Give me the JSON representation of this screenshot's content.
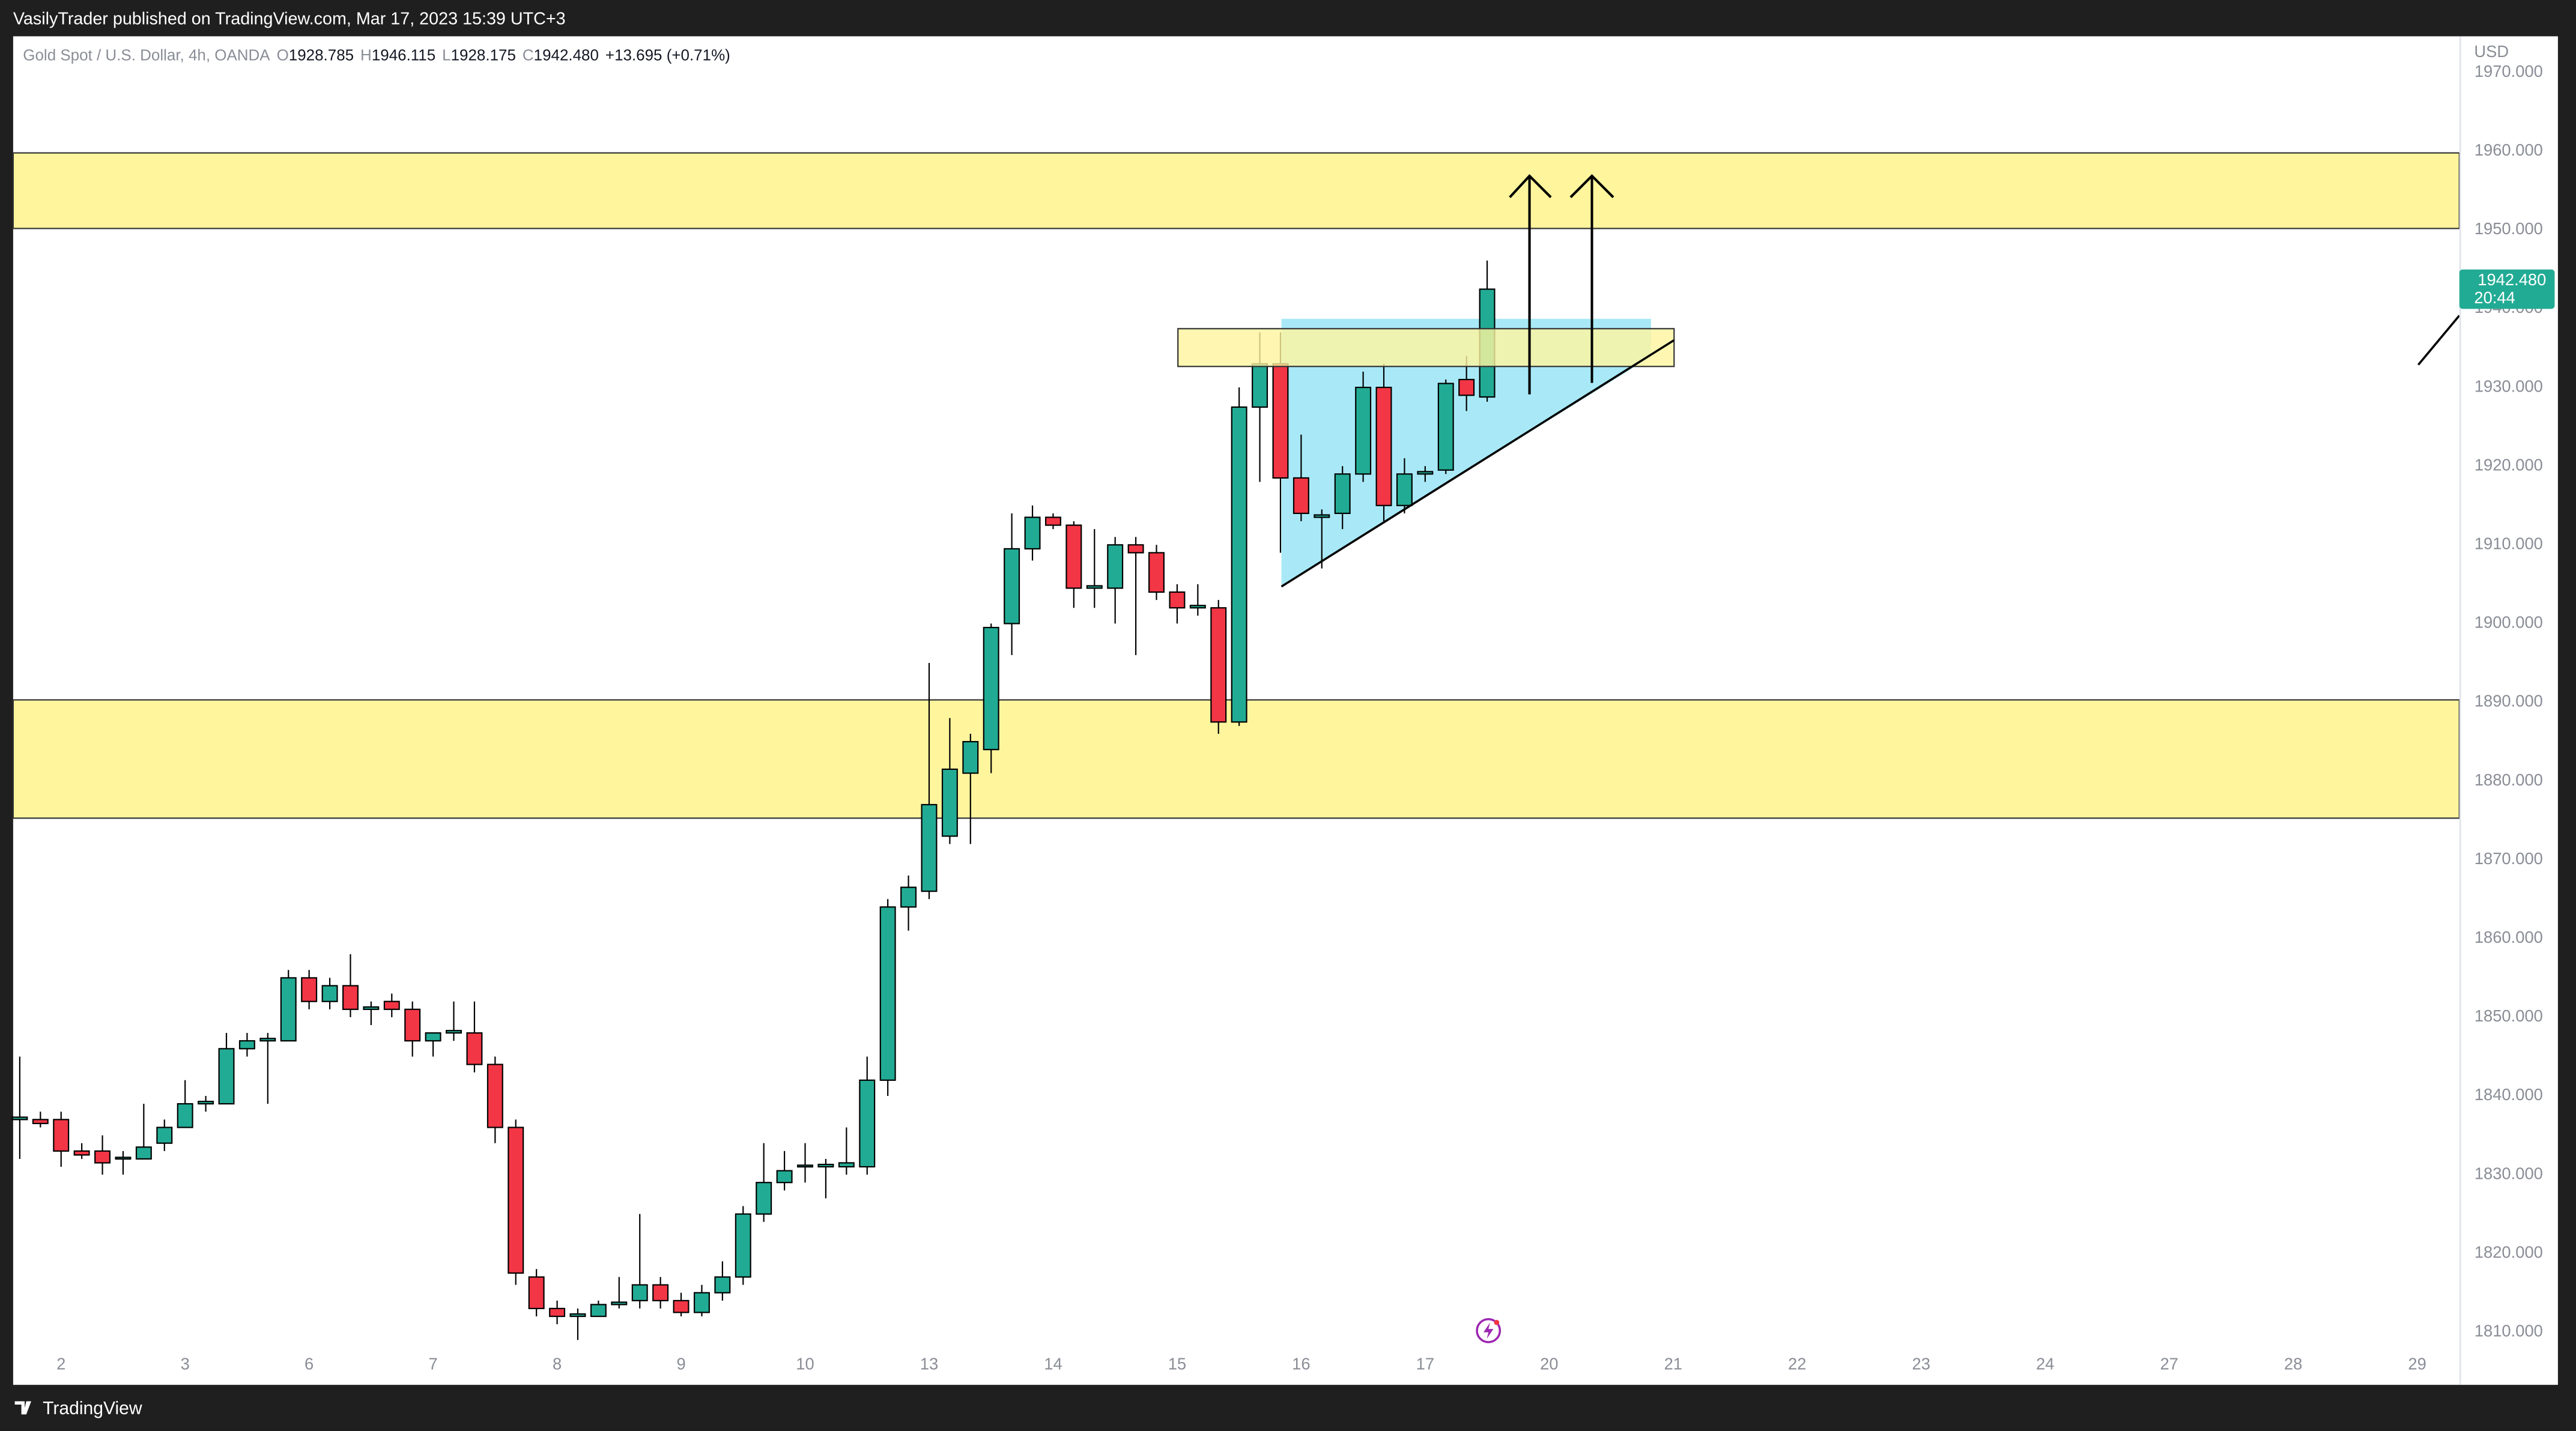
{
  "chart_data": {
    "type": "candlestick",
    "publisher_line": "VasilyTrader published on TradingView.com, Mar 17, 2023 15:39 UTC+3",
    "legend": {
      "symbol": "Gold Spot / U.S. Dollar, 4h, OANDA",
      "open_label": "O",
      "open": "1928.785",
      "high_label": "H",
      "high": "1946.115",
      "low_label": "L",
      "low": "1928.175",
      "close_label": "C",
      "close": "1942.480",
      "change": "+13.695 (+0.71%)"
    },
    "y_axis_label": "USD",
    "footer": "TradingView",
    "up_color": "#22ab94",
    "down_color": "#f23645",
    "open": [
      1837,
      1837,
      1837,
      1833,
      1833,
      1832,
      1832,
      1834,
      1836,
      1839,
      1839,
      1846,
      1847,
      1847,
      1855,
      1852,
      1854,
      1851,
      1852,
      1851,
      1847,
      1848,
      1848,
      1844,
      1836,
      1817,
      1813,
      1812,
      1812,
      1813.5,
      1814,
      1816,
      1814,
      1812.5,
      1815,
      1817,
      1825,
      1829,
      1831,
      1831,
      1831,
      1831,
      1842,
      1864,
      1866,
      1873,
      1881,
      1884,
      1900,
      1909.5,
      1913.5,
      1912.5,
      1904.5,
      1904.5,
      1910,
      1909,
      1904,
      1902,
      1902,
      1887.5,
      1927.5,
      1933,
      1918.5,
      1913.5,
      1914,
      1919,
      1930,
      1915,
      1919,
      1919.5,
      1931,
      1928.785
    ],
    "high": [
      1845,
      1838,
      1838,
      1834,
      1835,
      1833,
      1839,
      1837,
      1842,
      1840,
      1848,
      1848,
      1848,
      1856,
      1856,
      1855,
      1858,
      1852,
      1853,
      1852,
      1848,
      1852,
      1852,
      1845,
      1837,
      1818,
      1814,
      1813,
      1814,
      1817,
      1825,
      1817,
      1815,
      1816,
      1819,
      1826,
      1834,
      1833,
      1834,
      1832,
      1836,
      1845,
      1865,
      1868,
      1895,
      1888,
      1886,
      1900,
      1914,
      1915,
      1914,
      1913,
      1912,
      1911,
      1911,
      1910,
      1905,
      1905,
      1903,
      1930,
      1937,
      1937,
      1924,
      1914.5,
      1920,
      1932,
      1933,
      1921,
      1920,
      1931,
      1934,
      1946.115
    ],
    "low": [
      1832,
      1836,
      1831,
      1832,
      1830,
      1830,
      1832,
      1833,
      1836,
      1838,
      1839,
      1845,
      1839,
      1847,
      1851,
      1851,
      1850,
      1849,
      1850,
      1845,
      1845,
      1847,
      1843,
      1834,
      1816,
      1812,
      1811,
      1809,
      1812,
      1813,
      1813,
      1813,
      1812,
      1812,
      1814,
      1816,
      1824,
      1828,
      1829,
      1827,
      1830,
      1830,
      1840,
      1861,
      1865,
      1872,
      1872,
      1881,
      1896,
      1908,
      1912,
      1902,
      1902,
      1900,
      1896,
      1903,
      1900,
      1901,
      1886,
      1887,
      1918,
      1909,
      1913,
      1907,
      1912,
      1918,
      1913,
      1914,
      1918,
      1919,
      1927,
      1928.175
    ],
    "close": [
      1837.3,
      1836.5,
      1833,
      1832.5,
      1831.5,
      1832.2,
      1833.5,
      1836,
      1839,
      1839.3,
      1846,
      1847,
      1847.3,
      1855,
      1852,
      1854,
      1851,
      1851.3,
      1851,
      1847,
      1848,
      1848.3,
      1844,
      1836,
      1817.5,
      1813,
      1812,
      1812.3,
      1813.5,
      1813.8,
      1816,
      1814,
      1812.5,
      1815,
      1817,
      1825,
      1829,
      1830.5,
      1831.2,
      1831.3,
      1831.5,
      1842,
      1864,
      1866.5,
      1877,
      1881.5,
      1885,
      1899.5,
      1909.5,
      1913.5,
      1912.5,
      1904.5,
      1904.8,
      1910,
      1909,
      1904,
      1902,
      1902.3,
      1887.5,
      1927.5,
      1933,
      1918.5,
      1914,
      1913.8,
      1919,
      1930,
      1915,
      1919,
      1919.3,
      1930.5,
      1929,
      1942.48
    ],
    "xlim": [
      -0.32,
      118.04
    ],
    "xticks": [
      {
        "value": 2,
        "label": "2"
      },
      {
        "value": 8,
        "label": "3"
      },
      {
        "value": 14,
        "label": "6"
      },
      {
        "value": 20,
        "label": "7"
      },
      {
        "value": 26,
        "label": "8"
      },
      {
        "value": 32,
        "label": "9"
      },
      {
        "value": 38,
        "label": "10"
      },
      {
        "value": 44,
        "label": "13"
      },
      {
        "value": 50,
        "label": "14"
      },
      {
        "value": 56,
        "label": "15"
      },
      {
        "value": 62,
        "label": "16"
      },
      {
        "value": 68,
        "label": "17"
      },
      {
        "value": 74,
        "label": "20"
      },
      {
        "value": 80,
        "label": "21"
      },
      {
        "value": 86,
        "label": "22"
      },
      {
        "value": 92,
        "label": "23"
      },
      {
        "value": 98,
        "label": "24"
      },
      {
        "value": 104,
        "label": "27"
      },
      {
        "value": 110,
        "label": "28"
      },
      {
        "value": 116,
        "label": "29"
      }
    ],
    "ylim": [
      1803.3,
      1974.6
    ],
    "yticks": [
      {
        "value": 1970,
        "label": "1970.000"
      },
      {
        "value": 1960,
        "label": "1960.000"
      },
      {
        "value": 1950,
        "label": "1950.000"
      },
      {
        "value": 1940,
        "label": "1940.000"
      },
      {
        "value": 1930,
        "label": "1930.000"
      },
      {
        "value": 1920,
        "label": "1920.000"
      },
      {
        "value": 1910,
        "label": "1910.000"
      },
      {
        "value": 1900,
        "label": "1900.000"
      },
      {
        "value": 1890,
        "label": "1890.000"
      },
      {
        "value": 1880,
        "label": "1880.000"
      },
      {
        "value": 1870,
        "label": "1870.000"
      },
      {
        "value": 1860,
        "label": "1860.000"
      },
      {
        "value": 1850,
        "label": "1850.000"
      },
      {
        "value": 1840,
        "label": "1840.000"
      },
      {
        "value": 1830,
        "label": "1830.000"
      },
      {
        "value": 1820,
        "label": "1820.000"
      },
      {
        "value": 1810,
        "label": "1810.000"
      }
    ],
    "last_price": {
      "value": 1942.48,
      "label": "1942.480"
    },
    "countdown": "20:44"
  }
}
